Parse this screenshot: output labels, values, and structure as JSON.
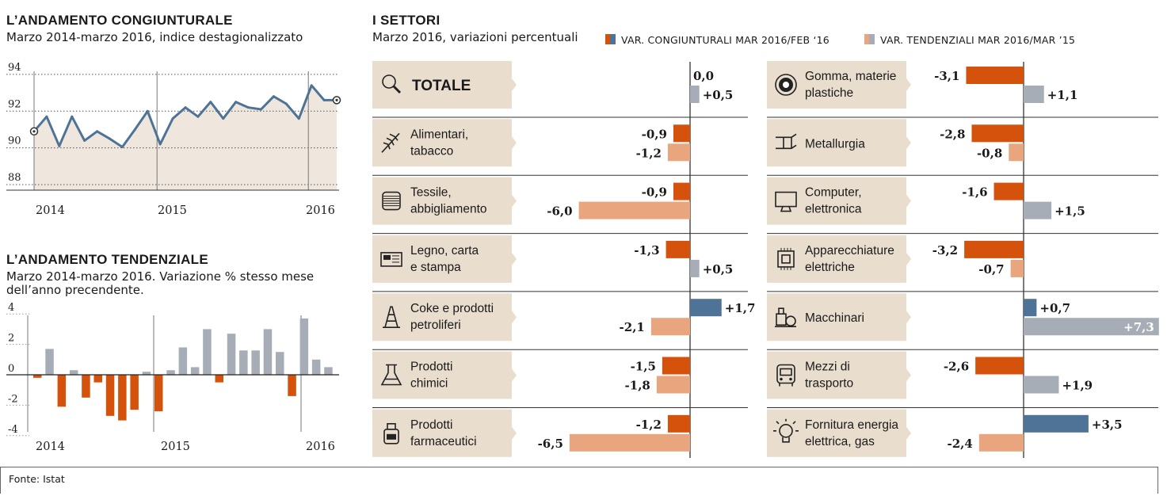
{
  "left_top": {
    "title": "L’ANDAMENTO CONGIUNTURALE",
    "subtitle": "Marzo 2014-marzo 2016, indice destagionalizzato"
  },
  "left_bottom": {
    "title": "L’ANDAMENTO TENDENZIALE",
    "subtitle_line1": "Marzo 2014-marzo 2016. Variazione % stesso mese",
    "subtitle_line2": "dell’anno precendente."
  },
  "right": {
    "title": "I SETTORI",
    "subtitle": "Marzo 2016, variazioni percentuali"
  },
  "legend": {
    "cong_label": "VAR. CONGIUNTURALI MAR 2016/FEB ‘16",
    "tend_label": "VAR. TENDENZIALI MAR 2016/MAR ’15"
  },
  "colors": {
    "cong_neg": "#d4520b",
    "cong_pos": "#4f7396",
    "tend_neg": "#e9a57d",
    "tend_pos": "#a6adb6",
    "line": "#4f7396",
    "box": "#e9ddce",
    "area": "#efe7de"
  },
  "footer": {
    "source": "Fonte: Istat"
  },
  "chart_data": [
    {
      "type": "line",
      "title": "L’ANDAMENTO CONGIUNTURALE",
      "subtitle": "Marzo 2014-marzo 2016, indice destagionalizzato",
      "x_tick_labels": [
        "2014",
        "2015",
        "2016"
      ],
      "y_ticks": [
        88,
        90,
        92,
        94
      ],
      "ylim": [
        87.7,
        94.6
      ],
      "x_start": "2014-03",
      "x_end": "2016-03",
      "values": [
        90.9,
        91.7,
        90.1,
        91.7,
        90.4,
        90.9,
        90.5,
        90.05,
        91.0,
        92.0,
        90.2,
        91.6,
        92.2,
        91.7,
        92.5,
        91.6,
        92.5,
        92.2,
        92.1,
        92.8,
        92.4,
        91.6,
        93.4,
        92.6,
        92.6
      ],
      "marked_points": [
        "first",
        "last"
      ]
    },
    {
      "type": "bar",
      "title": "L’ANDAMENTO TENDENZIALE",
      "subtitle": "Marzo 2014-marzo 2016. Variazione % stesso mese dell’anno precendente.",
      "x_tick_labels": [
        "2014",
        "2015",
        "2016"
      ],
      "y_tick_labels": [
        "4",
        "2",
        "0",
        "-2",
        "-4"
      ],
      "ylim": [
        -4.2,
        4.3
      ],
      "x_start": "2014-03",
      "x_end": "2016-03",
      "values": [
        -0.2,
        1.7,
        -2.1,
        0.3,
        -1.5,
        -0.5,
        -2.7,
        -3.0,
        -2.3,
        0.2,
        -2.4,
        0.3,
        1.8,
        0.5,
        3.0,
        -0.5,
        2.7,
        1.6,
        1.6,
        3.0,
        1.5,
        -1.4,
        3.7,
        1.0,
        0.5
      ]
    },
    {
      "type": "bar",
      "orientation": "horizontal",
      "title": "I SETTORI",
      "subtitle": "Marzo 2016, variazioni percentuali",
      "series": [
        {
          "name": "VAR. CONGIUNTURALI MAR 2016/FEB ‘16",
          "values": [
            0.0,
            -0.9,
            -0.9,
            -1.3,
            1.7,
            -1.5,
            -1.2,
            -3.1,
            -2.8,
            -1.6,
            -3.2,
            0.7,
            -2.6,
            3.5
          ]
        },
        {
          "name": "VAR. TENDENZIALI MAR 2016/MAR ’15",
          "values": [
            0.5,
            -1.2,
            -6.0,
            0.5,
            -2.1,
            -1.8,
            -6.5,
            1.1,
            -0.8,
            1.5,
            -0.7,
            7.3,
            1.9,
            -2.4
          ]
        }
      ],
      "sectors": [
        {
          "l1": "TOTALE",
          "l2": "",
          "icon": "magnifier-icon",
          "cong": 0.0,
          "tend": 0.5,
          "cong_label": "0,0",
          "tend_label": "+0,5"
        },
        {
          "l1": "Alimentari,",
          "l2": "tabacco",
          "icon": "wheat-icon",
          "cong": -0.9,
          "tend": -1.2,
          "cong_label": "-0,9",
          "tend_label": "-1,2"
        },
        {
          "l1": "Tessile,",
          "l2": "abbigliamento",
          "icon": "spool-icon",
          "cong": -0.9,
          "tend": -6.0,
          "cong_label": "-0,9",
          "tend_label": "-6,0"
        },
        {
          "l1": "Legno, carta",
          "l2": "e stampa",
          "icon": "newspaper-icon",
          "cong": -1.3,
          "tend": 0.5,
          "cong_label": "-1,3",
          "tend_label": "+0,5"
        },
        {
          "l1": "Coke e prodotti",
          "l2": "petroliferi",
          "icon": "oil-derrick-icon",
          "cong": 1.7,
          "tend": -2.1,
          "cong_label": "+1,7",
          "tend_label": "-2,1"
        },
        {
          "l1": "Prodotti",
          "l2": "chimici",
          "icon": "flask-icon",
          "cong": -1.5,
          "tend": -1.8,
          "cong_label": "-1,5",
          "tend_label": "-1,8"
        },
        {
          "l1": "Prodotti",
          "l2": "farmaceutici",
          "icon": "pill-bottle-icon",
          "cong": -1.2,
          "tend": -6.5,
          "cong_label": "-1,2",
          "tend_label": "-6,5"
        },
        {
          "l1": "Gomma, materie",
          "l2": "plastiche",
          "icon": "tire-icon",
          "cong": -3.1,
          "tend": 1.1,
          "cong_label": "-3,1",
          "tend_label": "+1,1"
        },
        {
          "l1": "Metallurgia",
          "l2": "",
          "icon": "steel-beam-icon",
          "cong": -2.8,
          "tend": -0.8,
          "cong_label": "-2,8",
          "tend_label": "-0,8"
        },
        {
          "l1": "Computer,",
          "l2": "elettronica",
          "icon": "monitor-icon",
          "cong": -1.6,
          "tend": 1.5,
          "cong_label": "-1,6",
          "tend_label": "+1,5"
        },
        {
          "l1": "Apparecchiature",
          "l2": "elettriche",
          "icon": "chip-icon",
          "cong": -3.2,
          "tend": -0.7,
          "cong_label": "-3,2",
          "tend_label": "-0,7"
        },
        {
          "l1": "Macchinari",
          "l2": "",
          "icon": "machinery-icon",
          "cong": 0.7,
          "tend": 7.3,
          "cong_label": "+0,7",
          "tend_label": "+7,3"
        },
        {
          "l1": "Mezzi di",
          "l2": "trasporto",
          "icon": "bus-icon",
          "cong": -2.6,
          "tend": 1.9,
          "cong_label": "-2,6",
          "tend_label": "+1,9"
        },
        {
          "l1": "Fornitura energia",
          "l2": "elettrica, gas",
          "icon": "lightbulb-icon",
          "cong": 3.5,
          "tend": -2.4,
          "cong_label": "+3,5",
          "tend_label": "-2,4"
        }
      ]
    }
  ]
}
